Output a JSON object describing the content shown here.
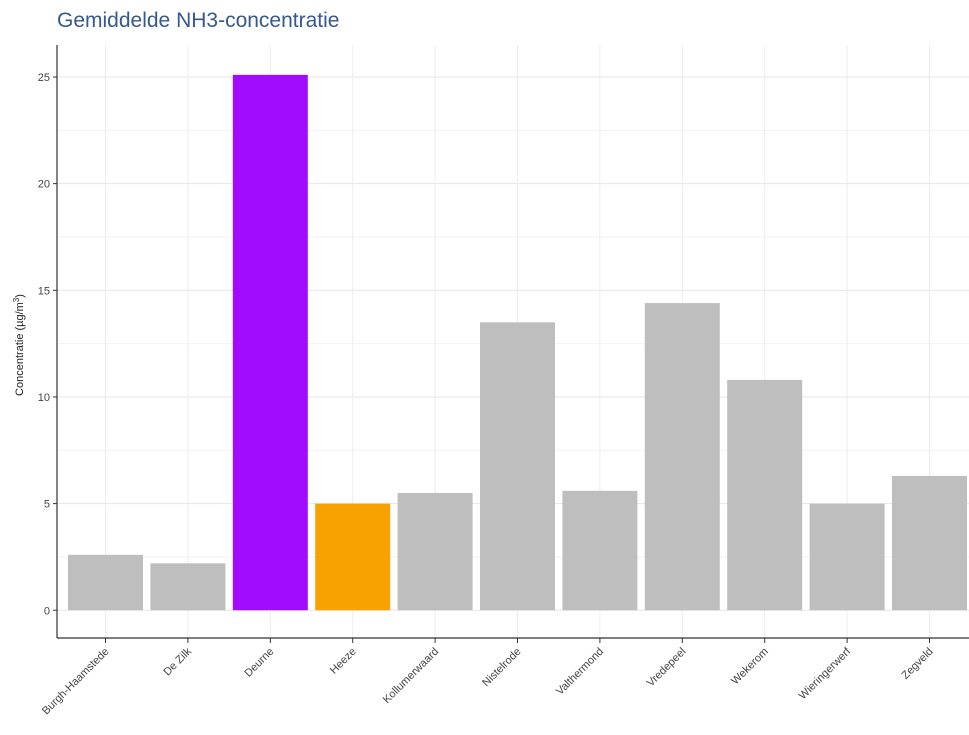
{
  "chart_data": {
    "type": "bar",
    "title": "Gemiddelde NH3-concentratie",
    "xlabel": "",
    "ylabel": "Concentratie (µg/m",
    "ylabel_superscript": "3",
    "ylabel_close": ")",
    "ylim": [
      -1.3,
      26.5
    ],
    "yticks": [
      0,
      5,
      10,
      15,
      20,
      25
    ],
    "ytick_labels": [
      "0",
      "5",
      "10",
      "15",
      "20",
      "25"
    ],
    "grid": true,
    "legend": "none",
    "categories": [
      "Burgh-Haamstede",
      "De Zilk",
      "Deurne",
      "Heeze",
      "Kollumerwaard",
      "Nistelrode",
      "Valthermond",
      "Vredepeel",
      "Wekerom",
      "Wieringerwerf",
      "Zegveld"
    ],
    "values": [
      2.6,
      2.2,
      25.1,
      5.0,
      5.5,
      13.5,
      5.6,
      14.4,
      10.8,
      5.0,
      6.3
    ],
    "bar_colors": [
      "#bebebe",
      "#bebebe",
      "#a10cff",
      "#f7a200",
      "#bebebe",
      "#bebebe",
      "#bebebe",
      "#bebebe",
      "#bebebe",
      "#bebebe",
      "#bebebe"
    ]
  }
}
